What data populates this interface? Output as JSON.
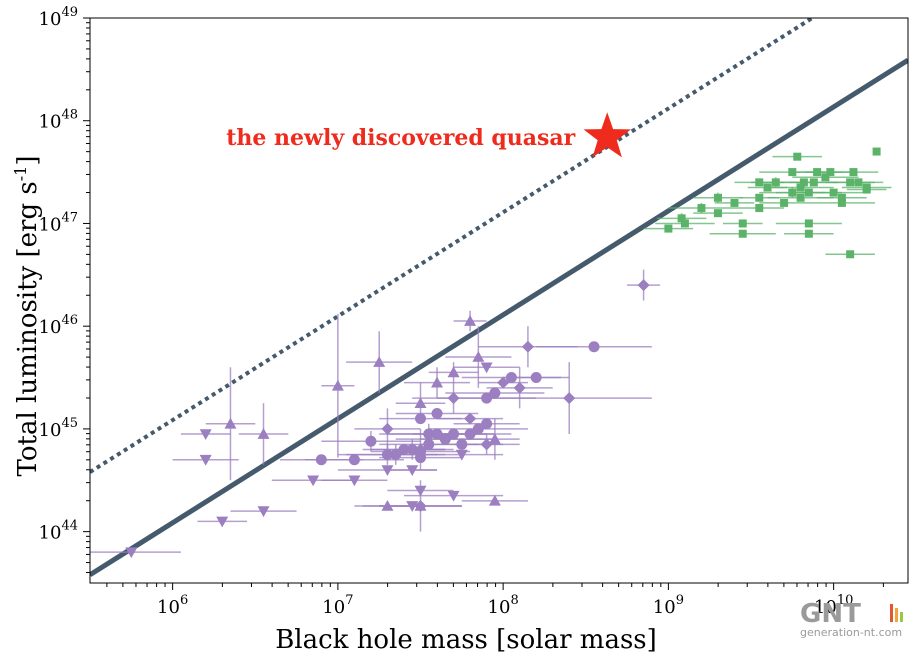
{
  "chart_data": {
    "type": "scatter",
    "title": "",
    "xlabel": "Black hole mass [solar mass]",
    "ylabel_main": "Total luminosity [erg s",
    "ylabel_sup": "-1",
    "ylabel_close": "]",
    "xscale": "log",
    "yscale": "log",
    "xlim_log10": [
      5.5,
      10.45
    ],
    "ylim_log10": [
      43.5,
      49.0
    ],
    "x_ticks": [
      {
        "exp": 6,
        "base": "10",
        "sup": "6"
      },
      {
        "exp": 7,
        "base": "10",
        "sup": "7"
      },
      {
        "exp": 8,
        "base": "10",
        "sup": "8"
      },
      {
        "exp": 9,
        "base": "10",
        "sup": "9"
      },
      {
        "exp": 10,
        "base": "10",
        "sup": "10"
      }
    ],
    "y_ticks": [
      {
        "exp": 44,
        "base": "10",
        "sup": "44"
      },
      {
        "exp": 45,
        "base": "10",
        "sup": "45"
      },
      {
        "exp": 46,
        "base": "10",
        "sup": "46"
      },
      {
        "exp": 47,
        "base": "10",
        "sup": "47"
      },
      {
        "exp": 48,
        "base": "10",
        "sup": "48"
      },
      {
        "exp": 49,
        "base": "10",
        "sup": "49"
      }
    ],
    "grid": false,
    "colors": {
      "purple": "#9b7fc0",
      "green": "#5bb36a",
      "line": "#455a6c",
      "star": "#ee2b1c"
    },
    "lines": [
      {
        "style": "solid",
        "log_x": [
          5.5,
          10.45
        ],
        "log_y": [
          43.58,
          48.59
        ]
      },
      {
        "style": "dotted",
        "log_x": [
          5.5,
          9.95
        ],
        "log_y": [
          44.58,
          49.08
        ]
      }
    ],
    "annotation": {
      "text": "the newly discovered quasar",
      "log_x": 8.63,
      "log_y": 47.84
    },
    "series": [
      {
        "marker": "square",
        "color": "green",
        "points": [
          [
            10.26,
            47.7,
            0,
            0
          ],
          [
            9.0,
            46.95,
            0.15,
            0
          ],
          [
            9.08,
            47.05,
            0.15,
            0.05
          ],
          [
            9.1,
            47.0,
            0.18,
            0
          ],
          [
            9.2,
            47.15,
            0.2,
            0.05
          ],
          [
            9.3,
            47.25,
            0.15,
            0.05
          ],
          [
            9.4,
            47.2,
            0.12,
            0
          ],
          [
            9.45,
            46.9,
            0.2,
            0
          ],
          [
            9.55,
            47.4,
            0.15,
            0
          ],
          [
            9.55,
            47.25,
            0.12,
            0
          ],
          [
            9.55,
            47.15,
            0.15,
            0
          ],
          [
            9.6,
            47.35,
            0.12,
            0
          ],
          [
            9.65,
            47.4,
            0.15,
            0.05
          ],
          [
            9.7,
            47.2,
            0.15,
            0
          ],
          [
            9.75,
            47.3,
            0.2,
            0.05
          ],
          [
            9.75,
            47.5,
            0.2,
            0
          ],
          [
            9.78,
            47.65,
            0.15,
            0
          ],
          [
            9.8,
            47.35,
            0.2,
            0
          ],
          [
            9.8,
            47.25,
            0.2,
            0
          ],
          [
            9.82,
            47.4,
            0.2,
            0
          ],
          [
            9.85,
            47.3,
            0.2,
            0
          ],
          [
            9.85,
            47.0,
            0.2,
            0
          ],
          [
            9.85,
            46.9,
            0.15,
            0
          ],
          [
            9.88,
            47.4,
            0.15,
            0
          ],
          [
            9.9,
            47.5,
            0.15,
            0
          ],
          [
            9.95,
            47.45,
            0.2,
            0
          ],
          [
            9.98,
            47.5,
            0.15,
            0
          ],
          [
            10.0,
            47.3,
            0.2,
            0
          ],
          [
            10.05,
            47.2,
            0.2,
            0
          ],
          [
            10.05,
            47.25,
            0.15,
            0
          ],
          [
            10.1,
            47.4,
            0.15,
            0
          ],
          [
            10.12,
            47.5,
            0.15,
            0
          ],
          [
            10.15,
            47.4,
            0.15,
            0
          ],
          [
            10.2,
            47.35,
            0.15,
            0
          ],
          [
            10.2,
            47.33,
            0.12,
            0
          ],
          [
            10.1,
            46.7,
            0.15,
            0
          ],
          [
            9.3,
            47.1,
            0.15,
            0
          ],
          [
            9.45,
            47.0,
            0.12,
            0
          ]
        ]
      },
      {
        "marker": "circle",
        "color": "purple",
        "points": [
          [
            6.9,
            44.7,
            0.25,
            0
          ],
          [
            7.1,
            44.7,
            0.3,
            0
          ],
          [
            7.2,
            44.88,
            0.3,
            0.1
          ],
          [
            7.3,
            44.75,
            0.3,
            0.1
          ],
          [
            7.35,
            44.75,
            0.3,
            0.1
          ],
          [
            7.4,
            44.8,
            0.25,
            0
          ],
          [
            7.45,
            44.8,
            0.25,
            0.1
          ],
          [
            7.5,
            44.72,
            0.25,
            0
          ],
          [
            7.5,
            44.78,
            0.3,
            0
          ],
          [
            7.5,
            45.1,
            0.25,
            0
          ],
          [
            7.55,
            44.85,
            0.3,
            0
          ],
          [
            7.55,
            44.95,
            0.3,
            0.1
          ],
          [
            7.6,
            45.15,
            0.25,
            0
          ],
          [
            7.6,
            44.95,
            0.3,
            0
          ],
          [
            7.65,
            44.9,
            0.3,
            0
          ],
          [
            7.7,
            44.95,
            0.25,
            0
          ],
          [
            7.75,
            44.85,
            0.25,
            0
          ],
          [
            7.8,
            44.95,
            0.25,
            0
          ],
          [
            7.85,
            45.0,
            0.3,
            0
          ],
          [
            7.9,
            45.3,
            0.3,
            0
          ],
          [
            7.95,
            45.35,
            0.3,
            0
          ],
          [
            7.9,
            45.05,
            0.2,
            0
          ],
          [
            8.05,
            45.5,
            0.3,
            0
          ],
          [
            8.2,
            45.5,
            0.2,
            0
          ],
          [
            8.55,
            45.8,
            0.35,
            0
          ]
        ]
      },
      {
        "marker": "diamond",
        "color": "purple",
        "points": [
          [
            7.3,
            45.0,
            0.2,
            0.2
          ],
          [
            7.5,
            44.8,
            0.15,
            0.2
          ],
          [
            7.5,
            44.25,
            0.25,
            0.25
          ],
          [
            7.65,
            44.9,
            0.15,
            0
          ],
          [
            7.7,
            45.3,
            0.25,
            0.15
          ],
          [
            7.8,
            45.1,
            0.2,
            0
          ],
          [
            7.9,
            44.85,
            0.2,
            0.1
          ],
          [
            8.0,
            45.45,
            0.15,
            0
          ],
          [
            8.1,
            45.4,
            0.2,
            0.2
          ],
          [
            8.15,
            45.8,
            0.3,
            0.2
          ],
          [
            8.4,
            45.3,
            0.5,
            0.35
          ],
          [
            8.85,
            46.4,
            0.1,
            0.15
          ]
        ]
      },
      {
        "marker": "tri_up",
        "color": "purple",
        "points": [
          [
            6.35,
            45.05,
            0.15,
            0.55
          ],
          [
            6.55,
            44.95,
            0.15,
            0.3
          ],
          [
            7.0,
            45.42,
            0.1,
            0.7
          ],
          [
            7.25,
            45.65,
            0.2,
            0.3
          ],
          [
            7.3,
            44.25,
            0.2,
            0
          ],
          [
            7.5,
            45.25,
            0.15,
            0.2
          ],
          [
            7.5,
            44.25,
            0.25,
            0
          ],
          [
            7.6,
            45.45,
            0.2,
            0.15
          ],
          [
            7.7,
            45.55,
            0.15,
            0.1
          ],
          [
            7.8,
            46.05,
            0.1,
            0.1
          ],
          [
            7.85,
            45.7,
            0.2,
            0.3
          ],
          [
            7.95,
            44.9,
            0.15,
            0.2
          ],
          [
            7.95,
            44.3,
            0.2,
            0
          ]
        ]
      },
      {
        "marker": "tri_down",
        "color": "purple",
        "points": [
          [
            5.75,
            43.8,
            0.3,
            0
          ],
          [
            6.2,
            44.7,
            0.2,
            0
          ],
          [
            6.2,
            44.95,
            0.15,
            0
          ],
          [
            6.3,
            44.1,
            0.15,
            0
          ],
          [
            6.55,
            44.2,
            0.2,
            0
          ],
          [
            6.85,
            44.5,
            0.25,
            0
          ],
          [
            7.1,
            44.5,
            0.2,
            0
          ],
          [
            7.3,
            44.6,
            0.3,
            0
          ],
          [
            7.45,
            44.25,
            0.3,
            0
          ],
          [
            7.5,
            44.4,
            0.2,
            0
          ],
          [
            7.7,
            44.35,
            0.3,
            0
          ],
          [
            7.75,
            44.75,
            0.25,
            0
          ],
          [
            7.9,
            45.6,
            0.2,
            0
          ],
          [
            7.45,
            44.6,
            0.15,
            0
          ]
        ]
      },
      {
        "marker": "star",
        "color": "star",
        "points": [
          [
            8.63,
            47.84,
            0,
            0
          ]
        ]
      }
    ],
    "watermark": {
      "logo": "GNT",
      "site": "generation-nt.com"
    }
  }
}
